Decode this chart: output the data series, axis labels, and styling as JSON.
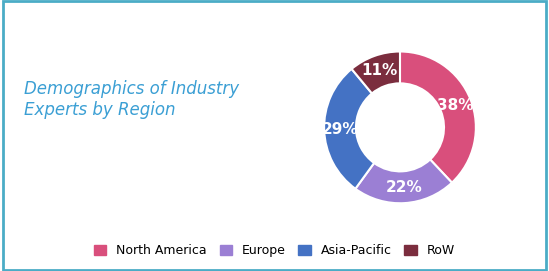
{
  "title": "Demographics of Industry\nExperts by Region",
  "title_color": "#3B9FD4",
  "title_fontsize": 12,
  "background_color": "#FFFFFF",
  "border_color": "#4BACC6",
  "slices": [
    38,
    22,
    29,
    11
  ],
  "labels": [
    "North America",
    "Europe",
    "Asia-Pacific",
    "RoW"
  ],
  "colors": [
    "#D94F7C",
    "#9B7FD4",
    "#4472C4",
    "#7B2D3E"
  ],
  "pct_labels": [
    "38%",
    "22%",
    "29%",
    "11%"
  ],
  "pct_color": "#FFFFFF",
  "pct_fontsize": 11,
  "legend_fontsize": 9,
  "donut_width": 0.42,
  "startangle": 90
}
